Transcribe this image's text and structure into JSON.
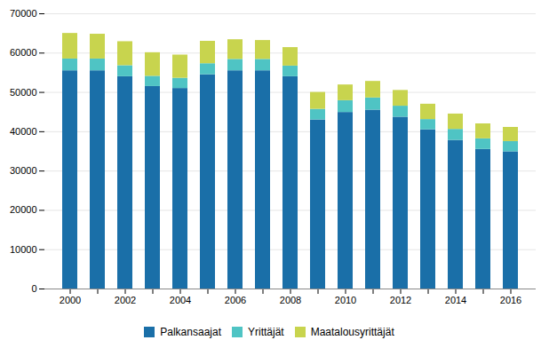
{
  "chart_data": {
    "type": "bar",
    "stacked": true,
    "categories": [
      "2000",
      null,
      "2002",
      null,
      "2004",
      null,
      "2006",
      null,
      "2008",
      null,
      "2010",
      null,
      "2012",
      null,
      "2014",
      null,
      "2016"
    ],
    "series": [
      {
        "name": "Palkansaajat",
        "color": "#1a6fa8",
        "values": [
          55500,
          55500,
          54000,
          51500,
          51000,
          54500,
          55500,
          55500,
          54000,
          43000,
          44900,
          45500,
          43700,
          40500,
          37800,
          35500,
          34900
        ]
      },
      {
        "name": "Yrittäjät",
        "color": "#4fc4c4",
        "values": [
          3000,
          3000,
          2800,
          2600,
          2600,
          2800,
          2900,
          2900,
          2700,
          2700,
          3000,
          3100,
          2800,
          2600,
          2800,
          2700,
          2600
        ]
      },
      {
        "name": "Maatalousyrittäjät",
        "color": "#c8d44e",
        "values": [
          6500,
          6300,
          6100,
          6000,
          5900,
          5700,
          5000,
          4800,
          4700,
          4300,
          4000,
          4200,
          4000,
          3900,
          3900,
          3800,
          3600
        ]
      }
    ],
    "ylim": [
      0,
      70000
    ],
    "yticks": [
      0,
      10000,
      20000,
      30000,
      40000,
      50000,
      60000,
      70000
    ],
    "grid": true,
    "legend": "bottom"
  }
}
